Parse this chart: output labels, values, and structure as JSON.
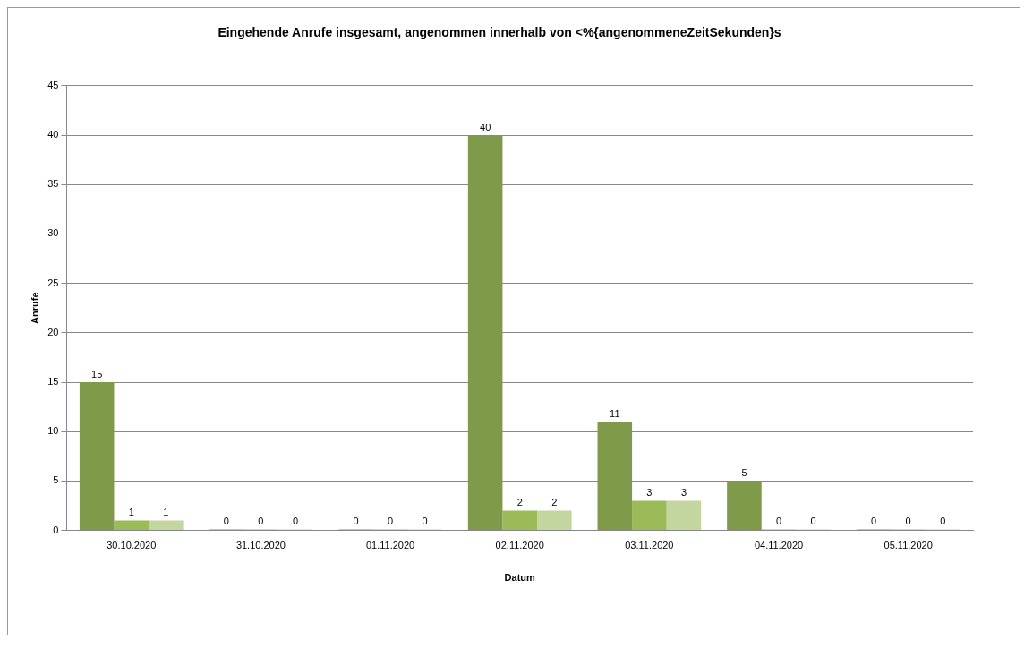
{
  "chart_data": {
    "type": "bar",
    "title": "Eingehende Anrufe insgesamt, angenommen innerhalb von <%{angenommeneZeitSekunden}s",
    "xlabel": "Datum",
    "ylabel": "Anrufe",
    "categories": [
      "30.10.2020",
      "31.10.2020",
      "01.11.2020",
      "02.11.2020",
      "03.11.2020",
      "04.11.2020",
      "05.11.2020"
    ],
    "series": [
      {
        "color": "#7f9a48",
        "values": [
          15,
          0,
          0,
          40,
          11,
          5,
          0
        ]
      },
      {
        "color": "#9bbb59",
        "values": [
          1,
          0,
          0,
          2,
          3,
          0,
          0
        ]
      },
      {
        "color": "#c4d6a0",
        "values": [
          1,
          0,
          0,
          2,
          3,
          0,
          0
        ]
      }
    ],
    "ylim": [
      0,
      45
    ],
    "yticks": [
      0,
      5,
      10,
      15,
      20,
      25,
      30,
      35,
      40,
      45
    ],
    "grid": "y",
    "data_labels": true,
    "legend": false
  }
}
